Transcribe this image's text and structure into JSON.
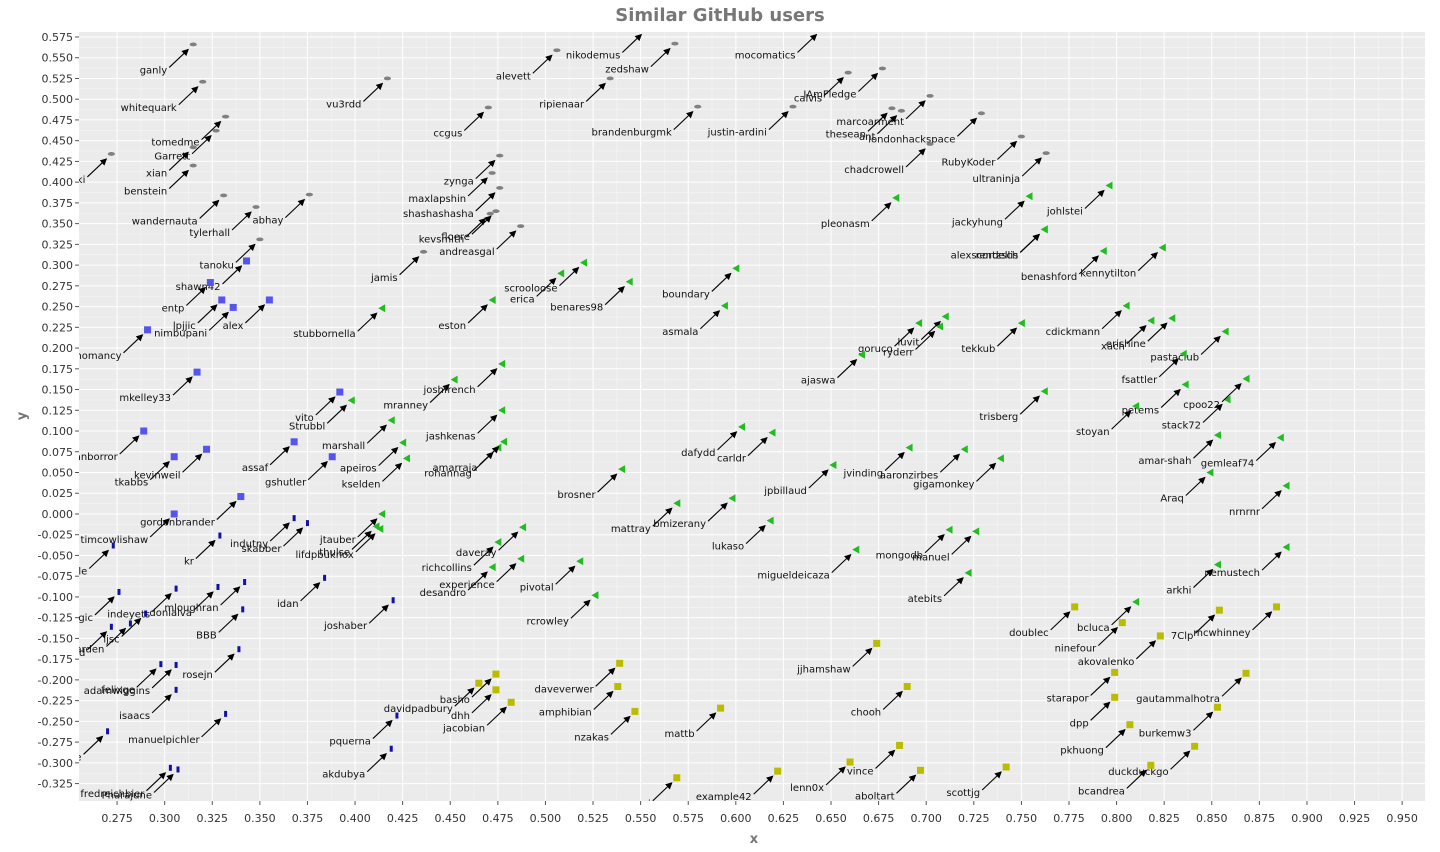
{
  "chart_data": {
    "type": "scatter",
    "title": "Similar GitHub users",
    "xlabel": "x",
    "ylabel": "y",
    "xlim": [
      0.255,
      0.962
    ],
    "ylim": [
      -0.346,
      0.581
    ],
    "xticks": [
      "0.275",
      "0.300",
      "0.325",
      "0.350",
      "0.375",
      "0.400",
      "0.425",
      "0.450",
      "0.475",
      "0.500",
      "0.525",
      "0.550",
      "0.575",
      "0.600",
      "0.625",
      "0.650",
      "0.675",
      "0.700",
      "0.725",
      "0.750",
      "0.775",
      "0.800",
      "0.825",
      "0.850",
      "0.875",
      "0.900",
      "0.925",
      "0.950"
    ],
    "yticks": [
      "-0.325",
      "-0.300",
      "-0.275",
      "-0.250",
      "-0.225",
      "-0.200",
      "-0.175",
      "-0.150",
      "-0.125",
      "-0.100",
      "-0.075",
      "-0.050",
      "-0.025",
      "0.000",
      "0.025",
      "0.050",
      "0.075",
      "0.100",
      "0.125",
      "0.150",
      "0.175",
      "0.200",
      "0.225",
      "0.250",
      "0.275",
      "0.300",
      "0.325",
      "0.350",
      "0.375",
      "0.400",
      "0.425",
      "0.450",
      "0.475",
      "0.500",
      "0.525",
      "0.550",
      "0.575"
    ],
    "colors": {
      "gray": "#808080",
      "blue": "#5555ee",
      "navy": "#1111aa",
      "green": "#22bb22",
      "olive": "#bbbb00"
    },
    "points": [
      {
        "label": "ganly",
        "x": 0.315,
        "y": 0.566,
        "c": "gray"
      },
      {
        "label": "whitequark",
        "x": 0.32,
        "y": 0.521,
        "c": "gray"
      },
      {
        "label": "tomedme",
        "x": 0.332,
        "y": 0.479,
        "c": "gray"
      },
      {
        "label": "Garrett",
        "x": 0.327,
        "y": 0.462,
        "c": "gray"
      },
      {
        "label": "xian",
        "x": 0.315,
        "y": 0.442,
        "c": "gray"
      },
      {
        "label": "ki",
        "x": 0.272,
        "y": 0.434,
        "c": "gray"
      },
      {
        "label": "benstein",
        "x": 0.315,
        "y": 0.42,
        "c": "gray"
      },
      {
        "label": "wandernauta",
        "x": 0.331,
        "y": 0.384,
        "c": "gray"
      },
      {
        "label": "tylerhall",
        "x": 0.348,
        "y": 0.37,
        "c": "gray"
      },
      {
        "label": "abhay",
        "x": 0.376,
        "y": 0.385,
        "c": "gray"
      },
      {
        "label": "tanoku",
        "x": 0.35,
        "y": 0.331,
        "c": "gray"
      },
      {
        "label": "vu3rdd",
        "x": 0.417,
        "y": 0.525,
        "c": "gray"
      },
      {
        "label": "ccgus",
        "x": 0.47,
        "y": 0.49,
        "c": "gray"
      },
      {
        "label": "alevett",
        "x": 0.506,
        "y": 0.559,
        "c": "gray"
      },
      {
        "label": "nikodemus",
        "x": 0.553,
        "y": 0.584,
        "c": "gray"
      },
      {
        "label": "zedshaw",
        "x": 0.568,
        "y": 0.567,
        "c": "gray"
      },
      {
        "label": "ripienaar",
        "x": 0.534,
        "y": 0.525,
        "c": "gray"
      },
      {
        "label": "brandenburgmk",
        "x": 0.58,
        "y": 0.491,
        "c": "gray"
      },
      {
        "label": "mocomatics",
        "x": 0.645,
        "y": 0.584,
        "c": "gray"
      },
      {
        "label": "calvis",
        "x": 0.659,
        "y": 0.532,
        "c": "gray"
      },
      {
        "label": "IAmFledge",
        "x": 0.677,
        "y": 0.537,
        "c": "gray"
      },
      {
        "label": "justin-ardini",
        "x": 0.63,
        "y": 0.491,
        "c": "gray"
      },
      {
        "label": "marcoarment",
        "x": 0.702,
        "y": 0.504,
        "c": "gray"
      },
      {
        "label": "thesean",
        "x": 0.682,
        "y": 0.489,
        "c": "gray"
      },
      {
        "label": "ant",
        "x": 0.687,
        "y": 0.486,
        "c": "gray"
      },
      {
        "label": "londonhackspace",
        "x": 0.729,
        "y": 0.483,
        "c": "gray"
      },
      {
        "label": "chadcrowell",
        "x": 0.702,
        "y": 0.446,
        "c": "gray"
      },
      {
        "label": "RubyKoder",
        "x": 0.75,
        "y": 0.455,
        "c": "gray"
      },
      {
        "label": "ultraninja",
        "x": 0.763,
        "y": 0.435,
        "c": "gray"
      },
      {
        "label": "zynga",
        "x": 0.476,
        "y": 0.432,
        "c": "gray"
      },
      {
        "label": "maxlapshin",
        "x": 0.472,
        "y": 0.411,
        "c": "gray"
      },
      {
        "label": "shashashasha",
        "x": 0.476,
        "y": 0.393,
        "c": "gray"
      },
      {
        "label": "kevsmith",
        "x": 0.471,
        "y": 0.362,
        "c": "gray"
      },
      {
        "label": "floere",
        "x": 0.474,
        "y": 0.365,
        "c": "gray"
      },
      {
        "label": "andreasgal",
        "x": 0.487,
        "y": 0.347,
        "c": "gray"
      },
      {
        "label": "jamis",
        "x": 0.436,
        "y": 0.316,
        "c": "gray"
      },
      {
        "label": "shawn42",
        "x": 0.343,
        "y": 0.305,
        "c": "blue"
      },
      {
        "label": "entp",
        "x": 0.324,
        "y": 0.279,
        "c": "blue"
      },
      {
        "label": "lpjjic",
        "x": 0.33,
        "y": 0.258,
        "c": "blue"
      },
      {
        "label": "nimbupani",
        "x": 0.336,
        "y": 0.249,
        "c": "blue"
      },
      {
        "label": "alex",
        "x": 0.355,
        "y": 0.258,
        "c": "blue"
      },
      {
        "label": "mkelley33",
        "x": 0.317,
        "y": 0.171,
        "c": "blue"
      },
      {
        "label": "nnomancy",
        "x": 0.291,
        "y": 0.222,
        "c": "blue"
      },
      {
        "label": "vito",
        "x": 0.392,
        "y": 0.147,
        "c": "blue"
      },
      {
        "label": "anborror",
        "x": 0.289,
        "y": 0.1,
        "c": "blue"
      },
      {
        "label": "tkabbs",
        "x": 0.305,
        "y": 0.069,
        "c": "blue"
      },
      {
        "label": "kevinweil",
        "x": 0.322,
        "y": 0.078,
        "c": "blue"
      },
      {
        "label": "assaf",
        "x": 0.368,
        "y": 0.087,
        "c": "blue"
      },
      {
        "label": "gshutler",
        "x": 0.388,
        "y": 0.069,
        "c": "blue"
      },
      {
        "label": "gordonbrander",
        "x": 0.34,
        "y": 0.021,
        "c": "blue"
      },
      {
        "label": "timcowlishaw",
        "x": 0.305,
        "y": 0.0,
        "c": "blue"
      },
      {
        "label": "stubbornella",
        "x": 0.414,
        "y": 0.248,
        "c": "green"
      },
      {
        "label": "Strubbl",
        "x": 0.398,
        "y": 0.137,
        "c": "green"
      },
      {
        "label": "marshall",
        "x": 0.419,
        "y": 0.113,
        "c": "green"
      },
      {
        "label": "apeiros",
        "x": 0.425,
        "y": 0.086,
        "c": "green"
      },
      {
        "label": "kselden",
        "x": 0.427,
        "y": 0.067,
        "c": "green"
      },
      {
        "label": "mranney",
        "x": 0.452,
        "y": 0.162,
        "c": "green"
      },
      {
        "label": "joshfrench",
        "x": 0.477,
        "y": 0.181,
        "c": "green"
      },
      {
        "label": "jashkenas",
        "x": 0.477,
        "y": 0.125,
        "c": "green"
      },
      {
        "label": "rohannag",
        "x": 0.475,
        "y": 0.08,
        "c": "green"
      },
      {
        "label": "amarraja",
        "x": 0.478,
        "y": 0.087,
        "c": "green"
      },
      {
        "label": "eston",
        "x": 0.472,
        "y": 0.258,
        "c": "green"
      },
      {
        "label": "erica",
        "x": 0.508,
        "y": 0.29,
        "c": "green"
      },
      {
        "label": "scrooloose",
        "x": 0.52,
        "y": 0.303,
        "c": "green"
      },
      {
        "label": "benares98",
        "x": 0.544,
        "y": 0.28,
        "c": "green"
      },
      {
        "label": "boundary",
        "x": 0.6,
        "y": 0.296,
        "c": "green"
      },
      {
        "label": "asmala",
        "x": 0.594,
        "y": 0.251,
        "c": "green"
      },
      {
        "label": "brosner",
        "x": 0.54,
        "y": 0.054,
        "c": "green"
      },
      {
        "label": "dafydd",
        "x": 0.603,
        "y": 0.105,
        "c": "green"
      },
      {
        "label": "carldr",
        "x": 0.619,
        "y": 0.098,
        "c": "green"
      },
      {
        "label": "mattray",
        "x": 0.569,
        "y": 0.013,
        "c": "green"
      },
      {
        "label": "bmizerany",
        "x": 0.598,
        "y": 0.019,
        "c": "green"
      },
      {
        "label": "lukaso",
        "x": 0.618,
        "y": -0.008,
        "c": "green"
      },
      {
        "label": "jtauber",
        "x": 0.414,
        "y": 0.0,
        "c": "green"
      },
      {
        "label": "thulse",
        "x": 0.411,
        "y": -0.015,
        "c": "green"
      },
      {
        "label": "lifdpbuknox",
        "x": 0.413,
        "y": -0.018,
        "c": "green"
      },
      {
        "label": "richcollins",
        "x": 0.475,
        "y": -0.034,
        "c": "green"
      },
      {
        "label": "daveray",
        "x": 0.488,
        "y": -0.016,
        "c": "green"
      },
      {
        "label": "desandro",
        "x": 0.472,
        "y": -0.064,
        "c": "green"
      },
      {
        "label": "experience",
        "x": 0.487,
        "y": -0.054,
        "c": "green"
      },
      {
        "label": "pivotal",
        "x": 0.518,
        "y": -0.057,
        "c": "green"
      },
      {
        "label": "rcrowley",
        "x": 0.526,
        "y": -0.098,
        "c": "green"
      },
      {
        "label": "goruco",
        "x": 0.696,
        "y": 0.23,
        "c": "green"
      },
      {
        "label": "luvit",
        "x": 0.71,
        "y": 0.238,
        "c": "green"
      },
      {
        "label": "ryderr",
        "x": 0.707,
        "y": 0.226,
        "c": "green"
      },
      {
        "label": "ajaswa",
        "x": 0.666,
        "y": 0.192,
        "c": "green"
      },
      {
        "label": "tekkub",
        "x": 0.75,
        "y": 0.23,
        "c": "green"
      },
      {
        "label": "jpbillaud",
        "x": 0.651,
        "y": 0.059,
        "c": "green"
      },
      {
        "label": "jvinding",
        "x": 0.691,
        "y": 0.08,
        "c": "green"
      },
      {
        "label": "aaronzirbes",
        "x": 0.72,
        "y": 0.078,
        "c": "green"
      },
      {
        "label": "gigamonkey",
        "x": 0.739,
        "y": 0.067,
        "c": "green"
      },
      {
        "label": "pleonasm",
        "x": 0.684,
        "y": 0.381,
        "c": "green"
      },
      {
        "label": "jackyhung",
        "x": 0.754,
        "y": 0.383,
        "c": "green"
      },
      {
        "label": "rentzsch",
        "x": 0.762,
        "y": 0.343,
        "c": "green"
      },
      {
        "label": "johlstei",
        "x": 0.796,
        "y": 0.396,
        "c": "green"
      },
      {
        "label": "alexscordellis",
        "x": 0.762,
        "y": 0.343,
        "c": "green"
      },
      {
        "label": "benashford",
        "x": 0.793,
        "y": 0.317,
        "c": "green"
      },
      {
        "label": "kennytilton",
        "x": 0.824,
        "y": 0.321,
        "c": "green"
      },
      {
        "label": "trisberg",
        "x": 0.762,
        "y": 0.148,
        "c": "green"
      },
      {
        "label": "migueldeicaza",
        "x": 0.663,
        "y": -0.043,
        "c": "green"
      },
      {
        "label": "mongodb",
        "x": 0.712,
        "y": -0.019,
        "c": "green"
      },
      {
        "label": "manuel",
        "x": 0.726,
        "y": -0.021,
        "c": "green"
      },
      {
        "label": "atebits",
        "x": 0.722,
        "y": -0.071,
        "c": "green"
      },
      {
        "label": "cdickmann",
        "x": 0.805,
        "y": 0.251,
        "c": "green"
      },
      {
        "label": "xach",
        "x": 0.818,
        "y": 0.233,
        "c": "green"
      },
      {
        "label": "erishine",
        "x": 0.829,
        "y": 0.236,
        "c": "green"
      },
      {
        "label": "pastaclub",
        "x": 0.857,
        "y": 0.22,
        "c": "green"
      },
      {
        "label": "fsattler",
        "x": 0.835,
        "y": 0.193,
        "c": "green"
      },
      {
        "label": "petems",
        "x": 0.836,
        "y": 0.156,
        "c": "green"
      },
      {
        "label": "stack72",
        "x": 0.858,
        "y": 0.138,
        "c": "green"
      },
      {
        "label": "stoyan",
        "x": 0.81,
        "y": 0.13,
        "c": "green"
      },
      {
        "label": "cpoo22",
        "x": 0.868,
        "y": 0.163,
        "c": "green"
      },
      {
        "label": "amar-shah",
        "x": 0.853,
        "y": 0.095,
        "c": "green"
      },
      {
        "label": "gemleaf74",
        "x": 0.886,
        "y": 0.092,
        "c": "green"
      },
      {
        "label": "Araq",
        "x": 0.849,
        "y": 0.05,
        "c": "green"
      },
      {
        "label": "nrnrnr",
        "x": 0.889,
        "y": 0.034,
        "c": "green"
      },
      {
        "label": "nemustech",
        "x": 0.889,
        "y": -0.04,
        "c": "green"
      },
      {
        "label": "arkhi",
        "x": 0.853,
        "y": -0.061,
        "c": "green"
      },
      {
        "label": "bcluca",
        "x": 0.81,
        "y": -0.106,
        "c": "green"
      },
      {
        "label": "jjhamshaw",
        "x": 0.674,
        "y": -0.156,
        "c": "olive"
      },
      {
        "label": "chooh",
        "x": 0.69,
        "y": -0.208,
        "c": "olive"
      },
      {
        "label": "vince",
        "x": 0.686,
        "y": -0.279,
        "c": "olive"
      },
      {
        "label": "aboltart",
        "x": 0.697,
        "y": -0.309,
        "c": "olive"
      },
      {
        "label": "scottjg",
        "x": 0.742,
        "y": -0.305,
        "c": "olive"
      },
      {
        "label": "lenn0x",
        "x": 0.66,
        "y": -0.299,
        "c": "olive"
      },
      {
        "label": "example42",
        "x": 0.622,
        "y": -0.31,
        "c": "olive"
      },
      {
        "label": "mazenovi",
        "x": 0.569,
        "y": -0.318,
        "c": "olive"
      },
      {
        "label": "mattb",
        "x": 0.592,
        "y": -0.234,
        "c": "olive"
      },
      {
        "label": "nzakas",
        "x": 0.547,
        "y": -0.238,
        "c": "olive"
      },
      {
        "label": "daveverwer",
        "x": 0.539,
        "y": -0.18,
        "c": "olive"
      },
      {
        "label": "amphibian",
        "x": 0.538,
        "y": -0.208,
        "c": "olive"
      },
      {
        "label": "davidpadbury",
        "x": 0.465,
        "y": -0.204,
        "c": "olive"
      },
      {
        "label": "basho",
        "x": 0.474,
        "y": -0.193,
        "c": "olive"
      },
      {
        "label": "dhh",
        "x": 0.474,
        "y": -0.212,
        "c": "olive"
      },
      {
        "label": "jacobian",
        "x": 0.482,
        "y": -0.227,
        "c": "olive"
      },
      {
        "label": "doublec",
        "x": 0.778,
        "y": -0.112,
        "c": "olive"
      },
      {
        "label": "ninefour",
        "x": 0.803,
        "y": -0.131,
        "c": "olive"
      },
      {
        "label": "akovalenko",
        "x": 0.823,
        "y": -0.147,
        "c": "olive"
      },
      {
        "label": "7Clp",
        "x": 0.854,
        "y": -0.116,
        "c": "olive"
      },
      {
        "label": "mcwhinney",
        "x": 0.884,
        "y": -0.112,
        "c": "olive"
      },
      {
        "label": "starapor",
        "x": 0.799,
        "y": -0.191,
        "c": "olive"
      },
      {
        "label": "dpp",
        "x": 0.799,
        "y": -0.221,
        "c": "olive"
      },
      {
        "label": "gautammalhotra",
        "x": 0.868,
        "y": -0.192,
        "c": "olive"
      },
      {
        "label": "burkemw3",
        "x": 0.853,
        "y": -0.233,
        "c": "olive"
      },
      {
        "label": "pkhuong",
        "x": 0.807,
        "y": -0.254,
        "c": "olive"
      },
      {
        "label": "duckduckgo",
        "x": 0.841,
        "y": -0.28,
        "c": "olive"
      },
      {
        "label": "bcandrea",
        "x": 0.818,
        "y": -0.303,
        "c": "olive"
      },
      {
        "label": "kr",
        "x": 0.329,
        "y": -0.026,
        "c": "navy"
      },
      {
        "label": "indutny",
        "x": 0.368,
        "y": -0.005,
        "c": "navy"
      },
      {
        "label": "skabber",
        "x": 0.375,
        "y": -0.011,
        "c": "navy"
      },
      {
        "label": "tle",
        "x": 0.273,
        "y": -0.038,
        "c": "navy"
      },
      {
        "label": "jonmagic",
        "x": 0.276,
        "y": -0.094,
        "c": "navy"
      },
      {
        "label": "indeyets",
        "x": 0.306,
        "y": -0.09,
        "c": "navy"
      },
      {
        "label": "donialva",
        "x": 0.328,
        "y": -0.088,
        "c": "navy"
      },
      {
        "label": "mloughran",
        "x": 0.342,
        "y": -0.082,
        "c": "navy"
      },
      {
        "label": "joshaber",
        "x": 0.42,
        "y": -0.104,
        "c": "navy"
      },
      {
        "label": "BBB",
        "x": 0.341,
        "y": -0.115,
        "c": "navy"
      },
      {
        "label": "ljsc",
        "x": 0.29,
        "y": -0.12,
        "c": "navy"
      },
      {
        "label": "cwarden",
        "x": 0.282,
        "y": -0.132,
        "c": "navy"
      },
      {
        "label": "gdoochild",
        "x": 0.272,
        "y": -0.136,
        "c": "navy"
      },
      {
        "label": "idan",
        "x": 0.384,
        "y": -0.077,
        "c": "navy"
      },
      {
        "label": "adamwiggins",
        "x": 0.306,
        "y": -0.182,
        "c": "navy"
      },
      {
        "label": "felixge",
        "x": 0.298,
        "y": -0.181,
        "c": "navy"
      },
      {
        "label": "isaacs",
        "x": 0.306,
        "y": -0.212,
        "c": "navy"
      },
      {
        "label": "manuelpichler",
        "x": 0.332,
        "y": -0.241,
        "c": "navy"
      },
      {
        "label": "rosejn",
        "x": 0.339,
        "y": -0.163,
        "c": "navy"
      },
      {
        "label": "pquerna",
        "x": 0.422,
        "y": -0.243,
        "c": "navy"
      },
      {
        "label": "akdubya",
        "x": 0.419,
        "y": -0.283,
        "c": "navy"
      },
      {
        "label": "fredreichbier",
        "x": 0.303,
        "y": -0.306,
        "c": "navy"
      },
      {
        "label": "Pharajune",
        "x": 0.307,
        "y": -0.308,
        "c": "navy"
      },
      {
        "label": "cte",
        "x": 0.27,
        "y": -0.262,
        "c": "navy"
      }
    ]
  }
}
